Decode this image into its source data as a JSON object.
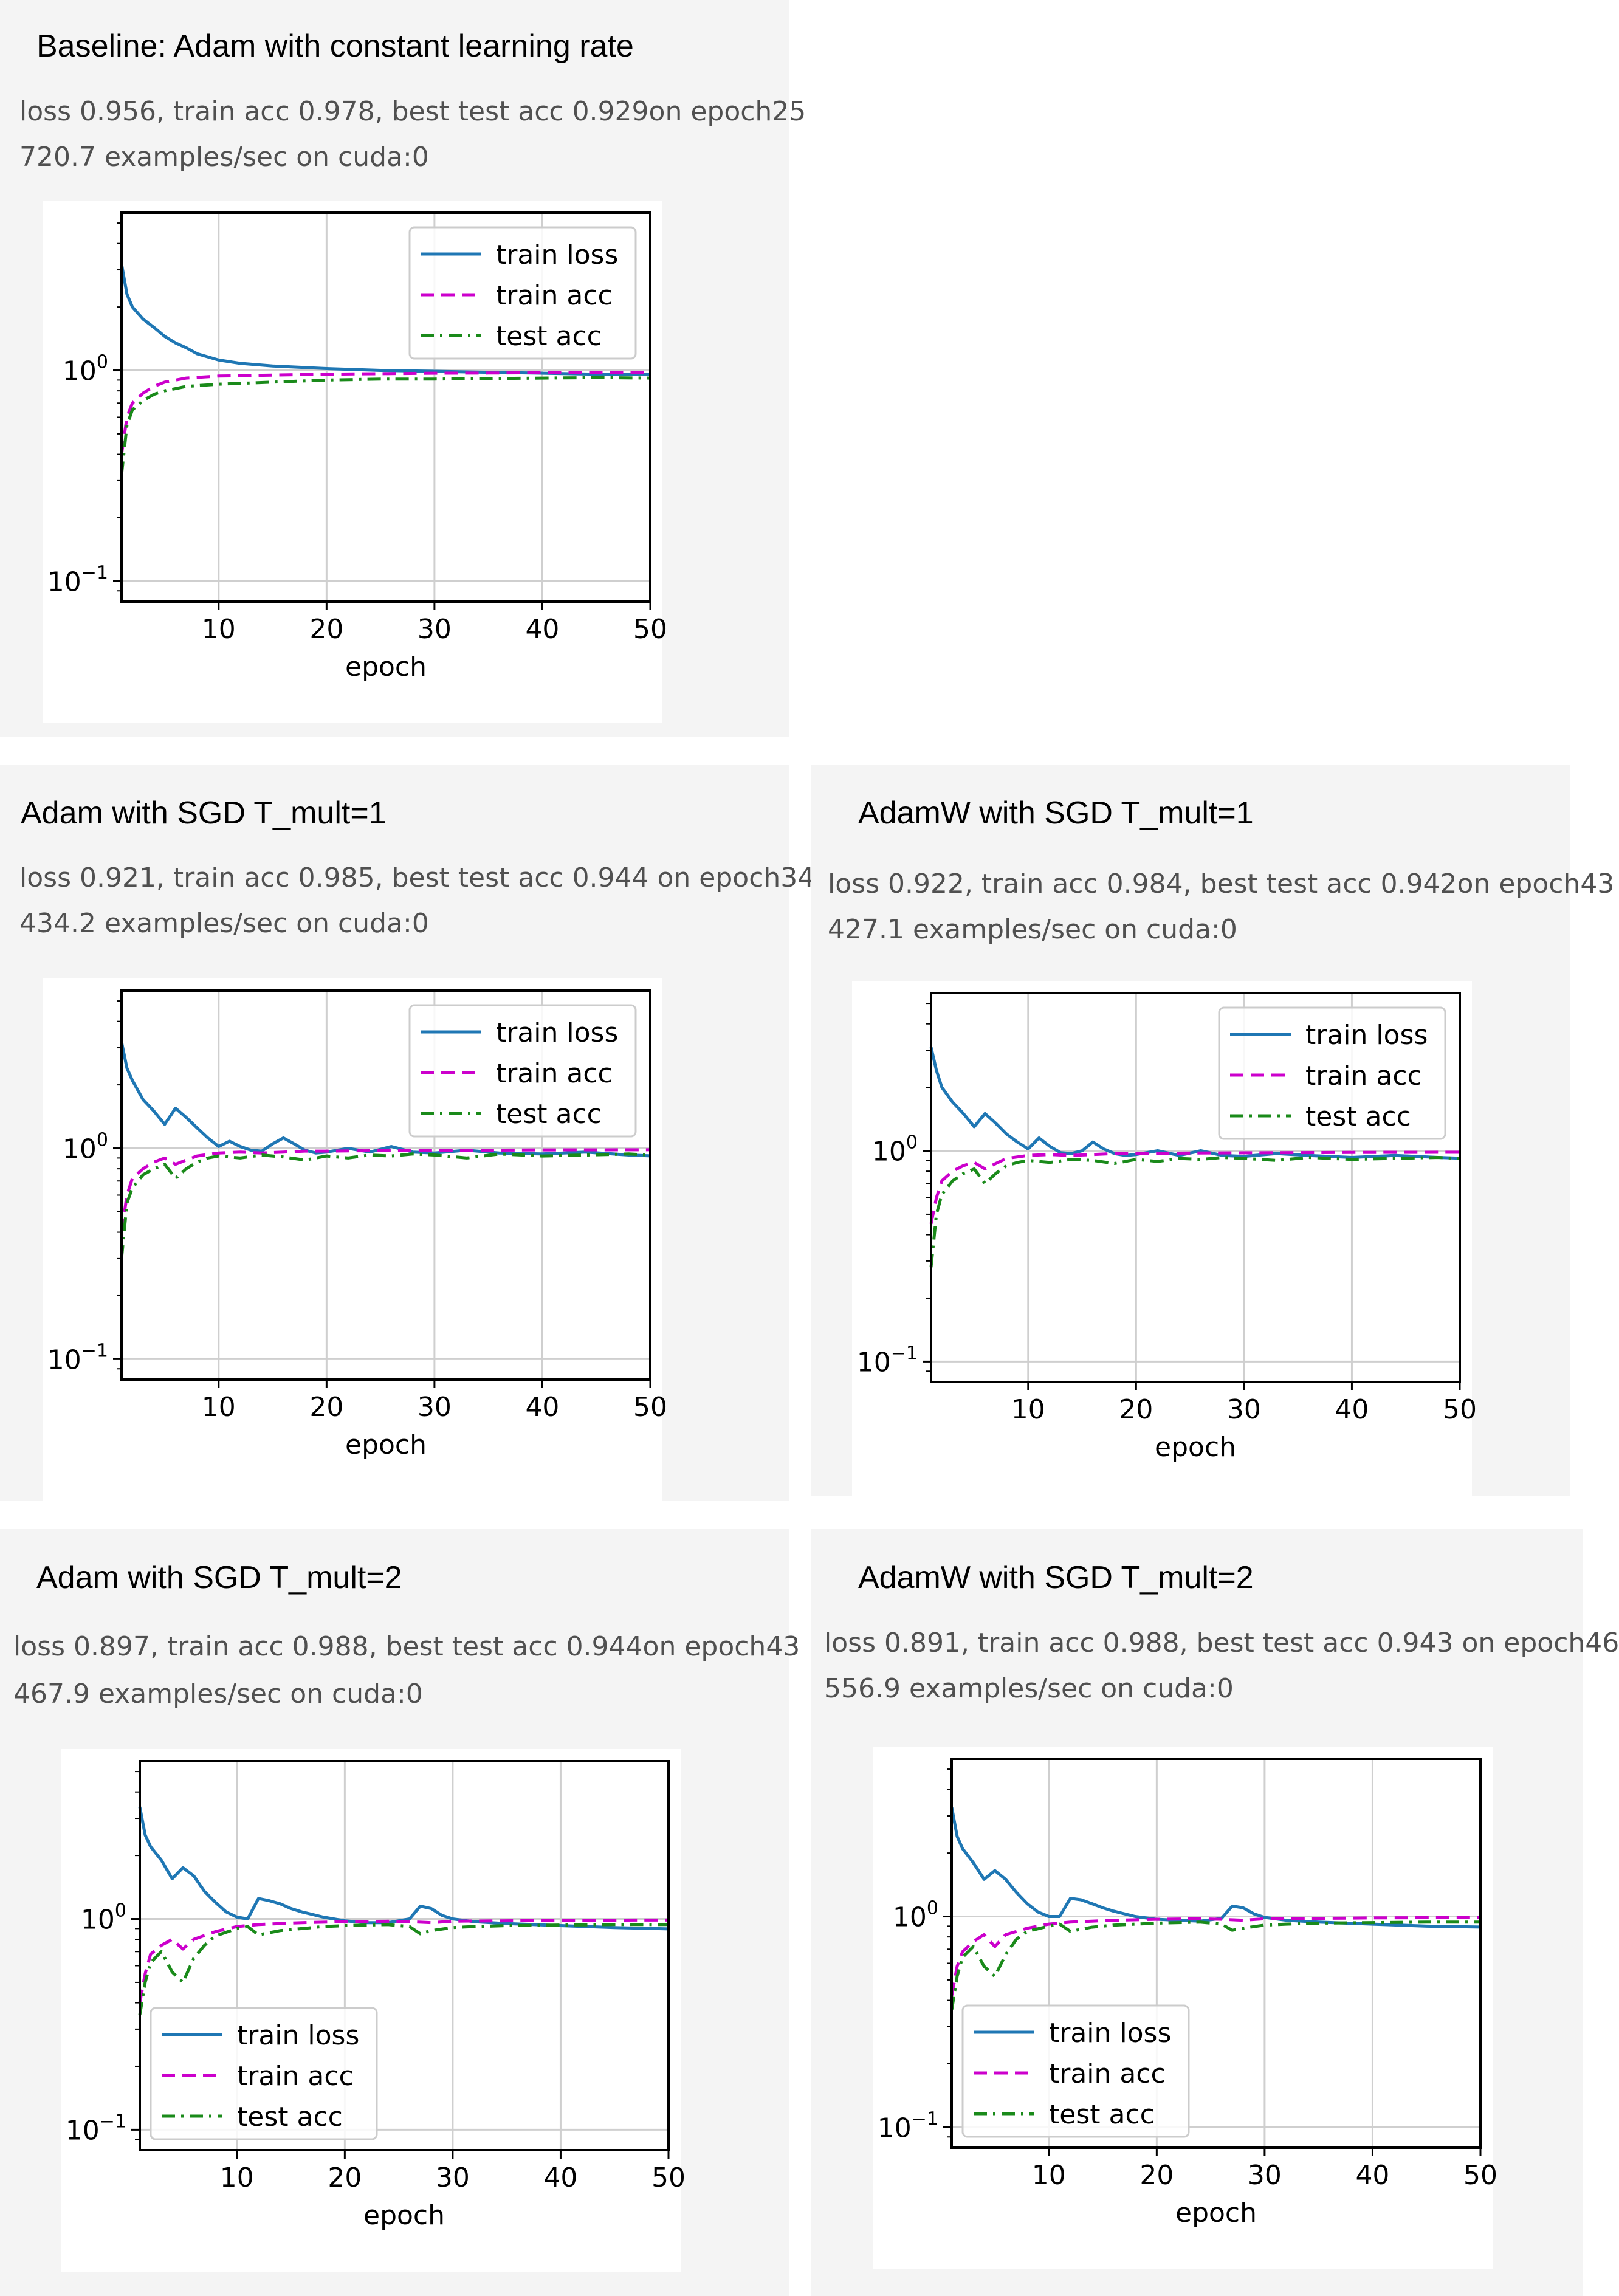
{
  "colors": {
    "train_loss": "#1f77b4",
    "train_acc": "#cc00cc",
    "test_acc": "#1a8a1a",
    "grid": "#cfcfcf",
    "panel_bg": "#f4f4f4"
  },
  "panels": [
    {
      "title": "Baseline: Adam with constant learning rate",
      "status_line1": "loss 0.956, train acc 0.978, best test acc 0.929on epoch25",
      "status_line2": "720.7 examples/sec on cuda:0"
    },
    {
      "title": "Adam with SGD T_mult=1",
      "status_line1": "loss 0.921, train acc 0.985, best test acc 0.944 on epoch34",
      "status_line2": "434.2 examples/sec on cuda:0"
    },
    {
      "title": "AdamW with SGD T_mult=1",
      "status_line1": "loss 0.922, train acc 0.984, best test acc 0.942on epoch43",
      "status_line2": "427.1 examples/sec on cuda:0"
    },
    {
      "title": "Adam with SGD T_mult=2",
      "status_line1": "loss 0.897, train acc 0.988, best test acc 0.944on epoch43",
      "status_line2": "467.9 examples/sec on cuda:0"
    },
    {
      "title": "AdamW with SGD T_mult=2",
      "status_line1": "loss 0.891, train acc 0.988, best test acc 0.943 on epoch46",
      "status_line2": "556.9 examples/sec on cuda:0"
    }
  ],
  "chart_data": [
    {
      "type": "line",
      "title": "Baseline: Adam with constant learning rate",
      "xlabel": "epoch",
      "ylabel": "",
      "yscale": "log",
      "xlim": [
        1,
        50
      ],
      "ylim": [
        0.08,
        5.6
      ],
      "xticks": [
        "10",
        "20",
        "30",
        "40",
        "50"
      ],
      "yticks": [
        {
          "base": "10",
          "exp": "0"
        },
        {
          "base": "10",
          "exp": "−1"
        }
      ],
      "legend_position": "top-right",
      "grid": true,
      "series": [
        {
          "name": "train loss",
          "style": "solid",
          "x": [
            1,
            1.5,
            2,
            3,
            4,
            5,
            6,
            7,
            8,
            10,
            12,
            15,
            20,
            25,
            30,
            35,
            40,
            45,
            50
          ],
          "values": [
            3.2,
            2.3,
            2.0,
            1.75,
            1.6,
            1.45,
            1.35,
            1.28,
            1.2,
            1.12,
            1.08,
            1.05,
            1.02,
            1.0,
            0.99,
            0.98,
            0.97,
            0.96,
            0.956
          ]
        },
        {
          "name": "train acc",
          "style": "dashed",
          "x": [
            1,
            1.5,
            2,
            3,
            4,
            5,
            7,
            10,
            15,
            20,
            25,
            30,
            35,
            40,
            45,
            50
          ],
          "values": [
            0.4,
            0.6,
            0.7,
            0.78,
            0.84,
            0.88,
            0.92,
            0.94,
            0.95,
            0.96,
            0.965,
            0.97,
            0.972,
            0.975,
            0.977,
            0.978
          ]
        },
        {
          "name": "test acc",
          "style": "dashdot",
          "x": [
            1,
            1.5,
            2,
            3,
            4,
            5,
            7,
            10,
            15,
            20,
            25,
            30,
            35,
            40,
            45,
            50
          ],
          "values": [
            0.32,
            0.55,
            0.65,
            0.72,
            0.77,
            0.8,
            0.84,
            0.86,
            0.88,
            0.9,
            0.91,
            0.91,
            0.915,
            0.92,
            0.925,
            0.92
          ]
        }
      ]
    },
    {
      "type": "line",
      "title": "Adam with SGD T_mult=1",
      "xlabel": "epoch",
      "ylabel": "",
      "yscale": "log",
      "xlim": [
        1,
        50
      ],
      "ylim": [
        0.08,
        5.6
      ],
      "xticks": [
        "10",
        "20",
        "30",
        "40",
        "50"
      ],
      "yticks": [
        {
          "base": "10",
          "exp": "0"
        },
        {
          "base": "10",
          "exp": "−1"
        }
      ],
      "legend_position": "top-right",
      "grid": true,
      "series": [
        {
          "name": "train loss",
          "style": "solid",
          "x": [
            1,
            1.5,
            2,
            3,
            4,
            5,
            6,
            7,
            8,
            9,
            10,
            11,
            12,
            13,
            14,
            15,
            16,
            17,
            18,
            19,
            20,
            22,
            24,
            26,
            28,
            30,
            33,
            36,
            40,
            44,
            48,
            50
          ],
          "values": [
            3.2,
            2.4,
            2.1,
            1.7,
            1.5,
            1.3,
            1.55,
            1.4,
            1.25,
            1.12,
            1.02,
            1.08,
            1.02,
            0.98,
            0.97,
            1.05,
            1.12,
            1.05,
            0.98,
            0.95,
            0.96,
            1.0,
            0.96,
            1.02,
            0.96,
            0.95,
            0.98,
            0.95,
            0.94,
            0.96,
            0.93,
            0.921
          ]
        },
        {
          "name": "train acc",
          "style": "dashed",
          "x": [
            1,
            1.5,
            2,
            3,
            4,
            5,
            6,
            7,
            8,
            10,
            12,
            14,
            16,
            18,
            20,
            25,
            30,
            35,
            40,
            45,
            50
          ],
          "values": [
            0.4,
            0.6,
            0.72,
            0.8,
            0.86,
            0.9,
            0.84,
            0.88,
            0.92,
            0.95,
            0.96,
            0.95,
            0.96,
            0.97,
            0.97,
            0.975,
            0.98,
            0.98,
            0.983,
            0.984,
            0.985
          ]
        },
        {
          "name": "test acc",
          "style": "dashdot",
          "x": [
            1,
            1.5,
            2,
            3,
            4,
            5,
            6,
            7,
            8,
            9,
            10,
            12,
            14,
            16,
            18,
            20,
            22,
            24,
            26,
            28,
            30,
            33,
            36,
            40,
            44,
            48,
            50
          ],
          "values": [
            0.3,
            0.55,
            0.65,
            0.75,
            0.8,
            0.84,
            0.72,
            0.8,
            0.86,
            0.9,
            0.92,
            0.9,
            0.93,
            0.91,
            0.88,
            0.92,
            0.9,
            0.93,
            0.92,
            0.94,
            0.93,
            0.9,
            0.94,
            0.92,
            0.93,
            0.94,
            0.93
          ]
        }
      ]
    },
    {
      "type": "line",
      "title": "AdamW with SGD T_mult=1",
      "xlabel": "epoch",
      "ylabel": "",
      "yscale": "log",
      "xlim": [
        1,
        50
      ],
      "ylim": [
        0.08,
        5.6
      ],
      "xticks": [
        "10",
        "20",
        "30",
        "40",
        "50"
      ],
      "yticks": [
        {
          "base": "10",
          "exp": "0"
        },
        {
          "base": "10",
          "exp": "−1"
        }
      ],
      "legend_position": "top-right",
      "grid": true,
      "series": [
        {
          "name": "train loss",
          "style": "solid",
          "x": [
            1,
            1.5,
            2,
            3,
            4,
            5,
            6,
            7,
            8,
            9,
            10,
            11,
            12,
            13,
            14,
            15,
            16,
            17,
            18,
            19,
            20,
            22,
            24,
            26,
            28,
            30,
            33,
            36,
            40,
            44,
            48,
            50
          ],
          "values": [
            3.1,
            2.4,
            2.0,
            1.7,
            1.5,
            1.3,
            1.5,
            1.35,
            1.2,
            1.1,
            1.02,
            1.15,
            1.05,
            0.98,
            0.97,
            1.0,
            1.1,
            1.02,
            0.97,
            0.95,
            0.96,
            1.0,
            0.95,
            1.0,
            0.95,
            0.94,
            0.97,
            0.95,
            0.93,
            0.95,
            0.93,
            0.922
          ]
        },
        {
          "name": "train acc",
          "style": "dashed",
          "x": [
            1,
            1.5,
            2,
            3,
            4,
            5,
            6,
            7,
            8,
            10,
            12,
            14,
            16,
            18,
            20,
            25,
            30,
            35,
            40,
            45,
            50
          ],
          "values": [
            0.45,
            0.6,
            0.72,
            0.8,
            0.85,
            0.88,
            0.82,
            0.87,
            0.92,
            0.95,
            0.96,
            0.95,
            0.96,
            0.97,
            0.97,
            0.975,
            0.978,
            0.98,
            0.982,
            0.983,
            0.984
          ]
        },
        {
          "name": "test acc",
          "style": "dashdot",
          "x": [
            1,
            1.5,
            2,
            3,
            4,
            5,
            6,
            7,
            8,
            9,
            10,
            12,
            14,
            16,
            18,
            20,
            22,
            24,
            26,
            28,
            30,
            33,
            36,
            40,
            44,
            48,
            50
          ],
          "values": [
            0.28,
            0.5,
            0.62,
            0.72,
            0.78,
            0.82,
            0.7,
            0.78,
            0.85,
            0.88,
            0.9,
            0.88,
            0.91,
            0.9,
            0.87,
            0.91,
            0.89,
            0.92,
            0.91,
            0.93,
            0.92,
            0.9,
            0.93,
            0.91,
            0.92,
            0.93,
            0.92
          ]
        }
      ]
    },
    {
      "type": "line",
      "title": "Adam with SGD T_mult=2",
      "xlabel": "epoch",
      "ylabel": "",
      "yscale": "log",
      "xlim": [
        1,
        50
      ],
      "ylim": [
        0.08,
        5.6
      ],
      "xticks": [
        "10",
        "20",
        "30",
        "40",
        "50"
      ],
      "yticks": [
        {
          "base": "10",
          "exp": "0"
        },
        {
          "base": "10",
          "exp": "−1"
        }
      ],
      "legend_position": "bottom-left",
      "grid": true,
      "series": [
        {
          "name": "train loss",
          "style": "solid",
          "x": [
            1,
            1.5,
            2,
            3,
            4,
            5,
            6,
            7,
            8,
            9,
            10,
            11,
            12,
            13,
            14,
            15,
            16,
            18,
            20,
            22,
            24,
            26,
            27,
            28,
            29,
            30,
            32,
            35,
            40,
            45,
            50
          ],
          "values": [
            3.4,
            2.5,
            2.2,
            1.9,
            1.55,
            1.75,
            1.6,
            1.35,
            1.2,
            1.08,
            1.02,
            1.0,
            1.25,
            1.22,
            1.18,
            1.12,
            1.08,
            1.02,
            0.98,
            0.96,
            0.96,
            1.0,
            1.15,
            1.12,
            1.04,
            1.0,
            0.97,
            0.95,
            0.93,
            0.91,
            0.897
          ]
        },
        {
          "name": "train acc",
          "style": "dashed",
          "x": [
            1,
            1.5,
            2,
            3,
            4,
            5,
            6,
            8,
            10,
            12,
            14,
            16,
            20,
            24,
            26,
            28,
            30,
            35,
            40,
            45,
            50
          ],
          "values": [
            0.4,
            0.55,
            0.68,
            0.75,
            0.8,
            0.72,
            0.8,
            0.87,
            0.92,
            0.94,
            0.95,
            0.96,
            0.97,
            0.975,
            0.97,
            0.96,
            0.975,
            0.98,
            0.985,
            0.987,
            0.988
          ]
        },
        {
          "name": "test acc",
          "style": "dashdot",
          "x": [
            1,
            1.5,
            2,
            3,
            4,
            5,
            6,
            7,
            8,
            10,
            11,
            12,
            13,
            14,
            16,
            18,
            20,
            24,
            26,
            27,
            28,
            30,
            32,
            35,
            40,
            45,
            50
          ],
          "values": [
            0.35,
            0.5,
            0.62,
            0.7,
            0.56,
            0.5,
            0.65,
            0.75,
            0.83,
            0.9,
            0.92,
            0.84,
            0.86,
            0.88,
            0.9,
            0.92,
            0.93,
            0.94,
            0.92,
            0.85,
            0.88,
            0.91,
            0.92,
            0.93,
            0.935,
            0.94,
            0.94
          ]
        }
      ]
    },
    {
      "type": "line",
      "title": "AdamW with SGD T_mult=2",
      "xlabel": "epoch",
      "ylabel": "",
      "yscale": "log",
      "xlim": [
        1,
        50
      ],
      "ylim": [
        0.08,
        5.6
      ],
      "xticks": [
        "10",
        "20",
        "30",
        "40",
        "50"
      ],
      "yticks": [
        {
          "base": "10",
          "exp": "0"
        },
        {
          "base": "10",
          "exp": "−1"
        }
      ],
      "legend_position": "bottom-left",
      "grid": true,
      "series": [
        {
          "name": "train loss",
          "style": "solid",
          "x": [
            1,
            1.5,
            2,
            3,
            4,
            5,
            6,
            7,
            8,
            9,
            10,
            11,
            12,
            13,
            14,
            15,
            16,
            18,
            20,
            22,
            24,
            26,
            27,
            28,
            29,
            30,
            32,
            35,
            40,
            45,
            50
          ],
          "values": [
            3.3,
            2.4,
            2.1,
            1.8,
            1.5,
            1.65,
            1.5,
            1.3,
            1.15,
            1.05,
            1.0,
            1.0,
            1.22,
            1.2,
            1.15,
            1.1,
            1.06,
            1.0,
            0.97,
            0.96,
            0.95,
            0.98,
            1.12,
            1.1,
            1.03,
            0.99,
            0.96,
            0.94,
            0.92,
            0.9,
            0.891
          ]
        },
        {
          "name": "train acc",
          "style": "dashed",
          "x": [
            1,
            1.5,
            2,
            3,
            4,
            5,
            6,
            8,
            10,
            12,
            14,
            16,
            20,
            24,
            26,
            28,
            30,
            35,
            40,
            45,
            50
          ],
          "values": [
            0.42,
            0.58,
            0.68,
            0.76,
            0.82,
            0.72,
            0.82,
            0.88,
            0.92,
            0.94,
            0.95,
            0.96,
            0.97,
            0.975,
            0.97,
            0.96,
            0.975,
            0.98,
            0.985,
            0.987,
            0.988
          ]
        },
        {
          "name": "test acc",
          "style": "dashdot",
          "x": [
            1,
            1.5,
            2,
            3,
            4,
            5,
            6,
            7,
            8,
            10,
            11,
            12,
            13,
            14,
            16,
            18,
            20,
            24,
            26,
            27,
            28,
            30,
            32,
            35,
            40,
            45,
            50
          ],
          "values": [
            0.36,
            0.52,
            0.64,
            0.72,
            0.58,
            0.52,
            0.66,
            0.78,
            0.85,
            0.9,
            0.92,
            0.85,
            0.87,
            0.89,
            0.91,
            0.92,
            0.93,
            0.94,
            0.92,
            0.86,
            0.88,
            0.91,
            0.92,
            0.93,
            0.935,
            0.94,
            0.94
          ]
        }
      ]
    }
  ]
}
